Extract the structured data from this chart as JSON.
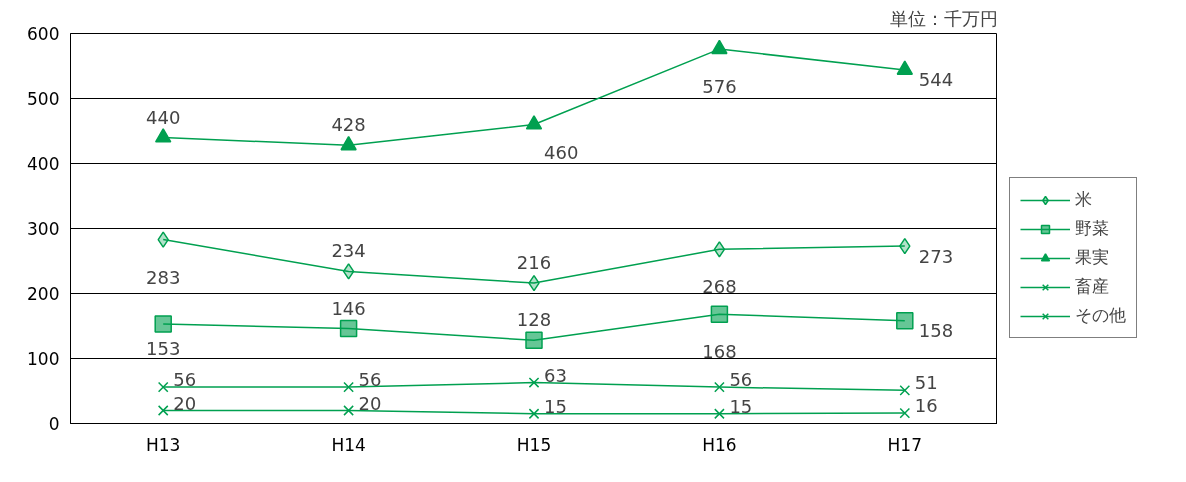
{
  "chart_data": {
    "type": "line",
    "categories": [
      "H13",
      "H14",
      "H15",
      "H16",
      "H17"
    ],
    "series": [
      {
        "name": "米",
        "color": "#00a050",
        "marker": "diamond",
        "values": [
          283,
          234,
          216,
          268,
          273
        ]
      },
      {
        "name": "野菜",
        "color": "#00a050",
        "marker": "square",
        "values": [
          153,
          146,
          128,
          168,
          158
        ]
      },
      {
        "name": "果実",
        "color": "#00a050",
        "marker": "triangle",
        "values": [
          440,
          428,
          460,
          576,
          544
        ]
      },
      {
        "name": "畜産",
        "color": "#00a050",
        "marker": "cross",
        "values": [
          20,
          20,
          15,
          15,
          16
        ]
      },
      {
        "name": "その他",
        "color": "#00a050",
        "marker": "cross",
        "values": [
          56,
          56,
          63,
          56,
          51
        ]
      }
    ],
    "ylim": [
      0,
      600
    ],
    "yticks": [
      0,
      100,
      200,
      300,
      400,
      500,
      600
    ],
    "grid": "y",
    "legend": "right",
    "data_labels": true,
    "annotations": [
      "単位：千万円"
    ]
  }
}
